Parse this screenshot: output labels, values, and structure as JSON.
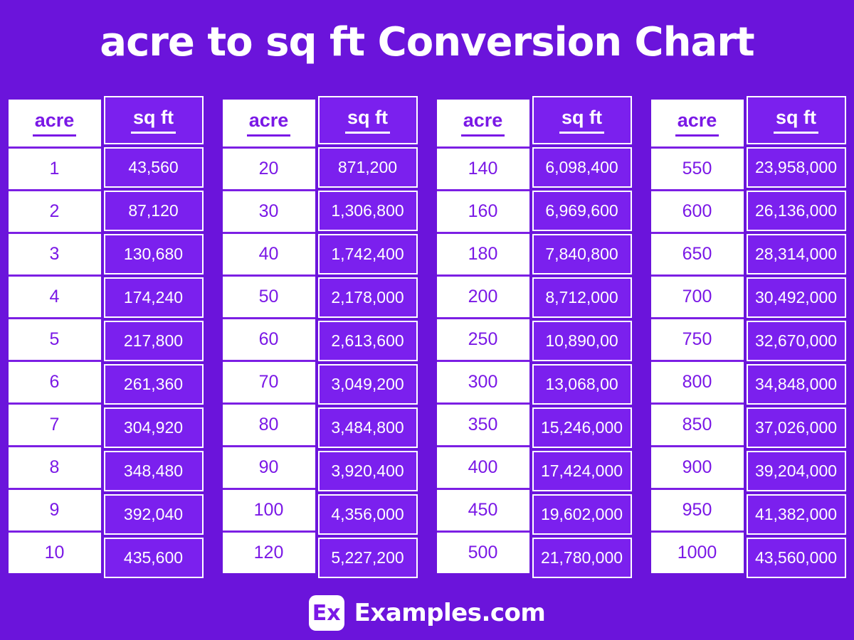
{
  "page": {
    "colors": {
      "background": "#6B14DB",
      "cell_fill": "#7B20EE",
      "text_purple": "#7A18E6",
      "separator_purple": "#7C1FE4",
      "text_white": "#FFFFFF"
    }
  },
  "title": "acre to sq ft Conversion Chart",
  "tables": [
    {
      "headers": {
        "acre": "acre",
        "sqft": "sq ft"
      },
      "rows": [
        {
          "acre": "1",
          "sqft": "43,560"
        },
        {
          "acre": "2",
          "sqft": "87,120"
        },
        {
          "acre": "3",
          "sqft": "130,680"
        },
        {
          "acre": "4",
          "sqft": "174,240"
        },
        {
          "acre": "5",
          "sqft": "217,800"
        },
        {
          "acre": "6",
          "sqft": "261,360"
        },
        {
          "acre": "7",
          "sqft": "304,920"
        },
        {
          "acre": "8",
          "sqft": "348,480"
        },
        {
          "acre": "9",
          "sqft": "392,040"
        },
        {
          "acre": "10",
          "sqft": "435,600"
        }
      ]
    },
    {
      "headers": {
        "acre": "acre",
        "sqft": "sq ft"
      },
      "rows": [
        {
          "acre": "20",
          "sqft": "871,200"
        },
        {
          "acre": "30",
          "sqft": "1,306,800"
        },
        {
          "acre": "40",
          "sqft": "1,742,400"
        },
        {
          "acre": "50",
          "sqft": "2,178,000"
        },
        {
          "acre": "60",
          "sqft": "2,613,600"
        },
        {
          "acre": "70",
          "sqft": "3,049,200"
        },
        {
          "acre": "80",
          "sqft": "3,484,800"
        },
        {
          "acre": "90",
          "sqft": "3,920,400"
        },
        {
          "acre": "100",
          "sqft": "4,356,000"
        },
        {
          "acre": "120",
          "sqft": "5,227,200"
        }
      ]
    },
    {
      "headers": {
        "acre": "acre",
        "sqft": "sq ft"
      },
      "rows": [
        {
          "acre": "140",
          "sqft": "6,098,400"
        },
        {
          "acre": "160",
          "sqft": "6,969,600"
        },
        {
          "acre": "180",
          "sqft": "7,840,800"
        },
        {
          "acre": "200",
          "sqft": "8,712,000"
        },
        {
          "acre": "250",
          "sqft": "10,890,00"
        },
        {
          "acre": "300",
          "sqft": "13,068,00"
        },
        {
          "acre": "350",
          "sqft": "15,246,000"
        },
        {
          "acre": "400",
          "sqft": "17,424,000"
        },
        {
          "acre": "450",
          "sqft": "19,602,000"
        },
        {
          "acre": "500",
          "sqft": "21,780,000"
        }
      ]
    },
    {
      "headers": {
        "acre": "acre",
        "sqft": "sq ft"
      },
      "rows": [
        {
          "acre": "550",
          "sqft": "23,958,000"
        },
        {
          "acre": "600",
          "sqft": "26,136,000"
        },
        {
          "acre": "650",
          "sqft": "28,314,000"
        },
        {
          "acre": "700",
          "sqft": "30,492,000"
        },
        {
          "acre": "750",
          "sqft": "32,670,000"
        },
        {
          "acre": "800",
          "sqft": "34,848,000"
        },
        {
          "acre": "850",
          "sqft": "37,026,000"
        },
        {
          "acre": "900",
          "sqft": "39,204,000"
        },
        {
          "acre": "950",
          "sqft": "41,382,000"
        },
        {
          "acre": "1000",
          "sqft": "43,560,000"
        }
      ]
    }
  ],
  "footer": {
    "logo_text": "Ex",
    "site_name": "Examples.com"
  },
  "chart_data": {
    "type": "table",
    "title": "acre to sq ft Conversion Chart",
    "columns": [
      "acre",
      "sq ft"
    ],
    "rows": [
      [
        "1",
        "43,560"
      ],
      [
        "2",
        "87,120"
      ],
      [
        "3",
        "130,680"
      ],
      [
        "4",
        "174,240"
      ],
      [
        "5",
        "217,800"
      ],
      [
        "6",
        "261,360"
      ],
      [
        "7",
        "304,920"
      ],
      [
        "8",
        "348,480"
      ],
      [
        "9",
        "392,040"
      ],
      [
        "10",
        "435,600"
      ],
      [
        "20",
        "871,200"
      ],
      [
        "30",
        "1,306,800"
      ],
      [
        "40",
        "1,742,400"
      ],
      [
        "50",
        "2,178,000"
      ],
      [
        "60",
        "2,613,600"
      ],
      [
        "70",
        "3,049,200"
      ],
      [
        "80",
        "3,484,800"
      ],
      [
        "90",
        "3,920,400"
      ],
      [
        "100",
        "4,356,000"
      ],
      [
        "120",
        "5,227,200"
      ],
      [
        "140",
        "6,098,400"
      ],
      [
        "160",
        "6,969,600"
      ],
      [
        "180",
        "7,840,800"
      ],
      [
        "200",
        "8,712,000"
      ],
      [
        "250",
        "10,890,00"
      ],
      [
        "300",
        "13,068,00"
      ],
      [
        "350",
        "15,246,000"
      ],
      [
        "400",
        "17,424,000"
      ],
      [
        "450",
        "19,602,000"
      ],
      [
        "500",
        "21,780,000"
      ],
      [
        "550",
        "23,958,000"
      ],
      [
        "600",
        "26,136,000"
      ],
      [
        "650",
        "28,314,000"
      ],
      [
        "700",
        "30,492,000"
      ],
      [
        "750",
        "32,670,000"
      ],
      [
        "800",
        "34,848,000"
      ],
      [
        "850",
        "37,026,000"
      ],
      [
        "900",
        "39,204,000"
      ],
      [
        "950",
        "41,382,000"
      ],
      [
        "1000",
        "43,560,000"
      ]
    ]
  }
}
